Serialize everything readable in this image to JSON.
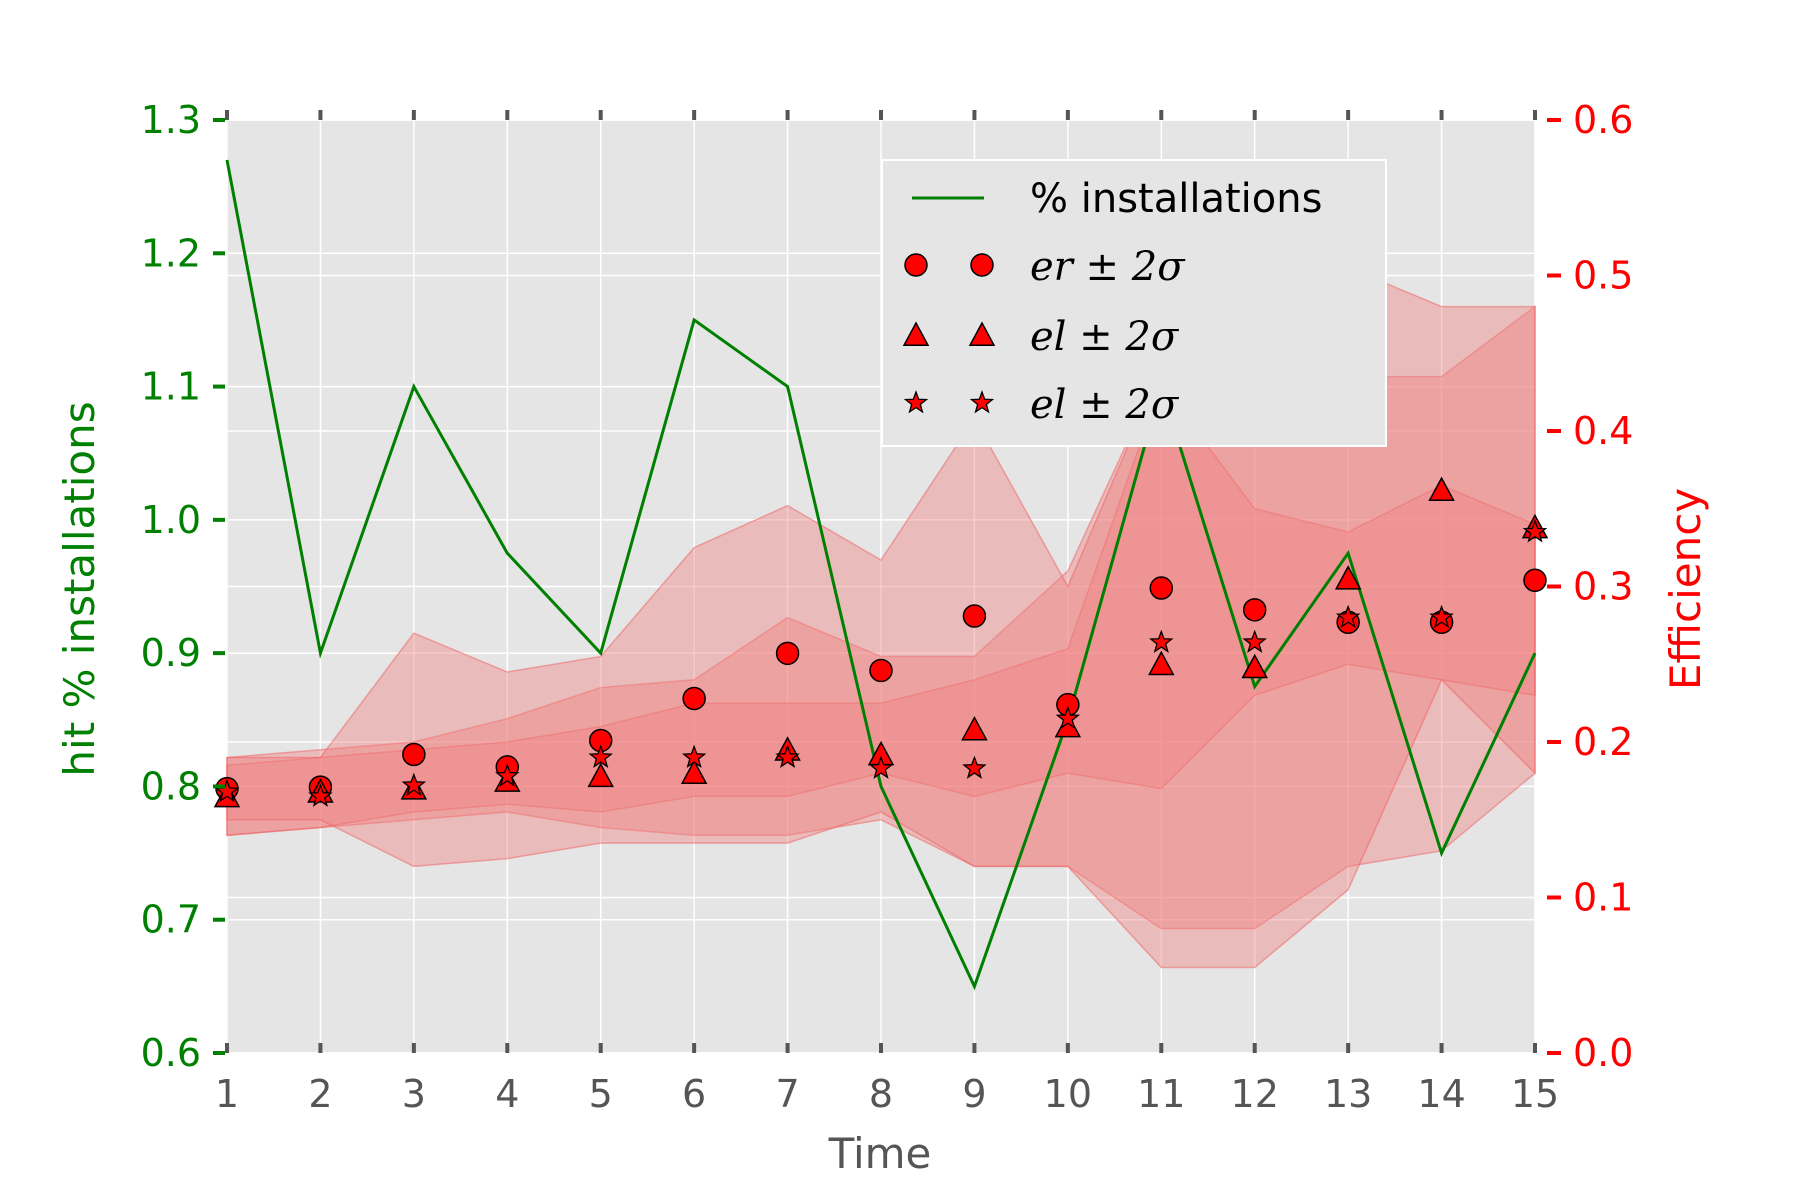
{
  "chart_data": {
    "type": "line",
    "x": [
      1,
      2,
      3,
      4,
      5,
      6,
      7,
      8,
      9,
      10,
      11,
      12,
      13,
      14,
      15
    ],
    "xlabel": "Time",
    "xlim": [
      1,
      15
    ],
    "x_tick_labels": [
      "1",
      "2",
      "3",
      "4",
      "5",
      "6",
      "7",
      "8",
      "9",
      "10",
      "11",
      "12",
      "13",
      "14",
      "15"
    ],
    "y_left": {
      "label": "hit % installations",
      "lim": [
        0.6,
        1.3
      ],
      "tick_labels": [
        "0.6",
        "0.7",
        "0.8",
        "0.9",
        "1.0",
        "1.1",
        "1.2",
        "1.3"
      ],
      "color": "#008000"
    },
    "y_right": {
      "label": "Efficiency",
      "lim": [
        0.0,
        0.6
      ],
      "tick_labels": [
        "0.0",
        "0.1",
        "0.2",
        "0.3",
        "0.4",
        "0.5",
        "0.6"
      ],
      "color": "#ff0000"
    },
    "grid": true,
    "legend_position": "top-right",
    "series": [
      {
        "name": "% installations",
        "axis": "left",
        "kind": "line",
        "color": "#008000",
        "values": [
          1.27,
          0.9,
          1.1,
          0.975,
          0.9,
          1.15,
          1.1,
          0.8,
          0.65,
          0.85,
          1.1,
          0.875,
          0.975,
          0.75,
          0.9
        ]
      },
      {
        "name": "er ± 2σ",
        "axis": "right",
        "kind": "scatter",
        "marker": "circle",
        "color": "#ff0000",
        "values": [
          0.17,
          0.171,
          0.192,
          0.184,
          0.201,
          0.228,
          0.257,
          0.246,
          0.281,
          0.224,
          0.299,
          0.285,
          0.277,
          0.277,
          0.304
        ],
        "band_lower": [
          0.14,
          0.145,
          0.15,
          0.155,
          0.145,
          0.14,
          0.14,
          0.15,
          0.12,
          0.12,
          0.08,
          0.08,
          0.12,
          0.13,
          0.18
        ],
        "band_upper": [
          0.19,
          0.195,
          0.2,
          0.215,
          0.235,
          0.24,
          0.28,
          0.255,
          0.255,
          0.31,
          0.44,
          0.445,
          0.435,
          0.435,
          0.48
        ]
      },
      {
        "name": "el ± 2σ",
        "axis": "right",
        "kind": "scatter",
        "marker": "triangle",
        "color": "#ff0000",
        "values": [
          0.165,
          0.168,
          0.17,
          0.175,
          0.178,
          0.18,
          0.195,
          0.192,
          0.208,
          0.21,
          0.25,
          0.248,
          0.305,
          0.362,
          0.338
        ],
        "band_lower": [
          0.14,
          0.145,
          0.155,
          0.16,
          0.155,
          0.165,
          0.165,
          0.18,
          0.165,
          0.18,
          0.17,
          0.23,
          0.25,
          0.24,
          0.23
        ],
        "band_upper": [
          0.185,
          0.19,
          0.195,
          0.2,
          0.21,
          0.225,
          0.225,
          0.225,
          0.24,
          0.26,
          0.43,
          0.35,
          0.335,
          0.365,
          0.34
        ]
      },
      {
        "name": "el ± 2σ",
        "axis": "right",
        "kind": "scatter",
        "marker": "star",
        "color": "#ff0000",
        "values": [
          0.168,
          0.165,
          0.172,
          0.178,
          0.19,
          0.19,
          0.19,
          0.183,
          0.183,
          0.215,
          0.264,
          0.264,
          0.28,
          0.28,
          0.335
        ],
        "band_lower": [
          0.15,
          0.15,
          0.12,
          0.125,
          0.135,
          0.135,
          0.135,
          0.155,
          0.12,
          0.12,
          0.055,
          0.055,
          0.105,
          0.24,
          0.18
        ],
        "band_upper": [
          0.19,
          0.19,
          0.27,
          0.245,
          0.255,
          0.325,
          0.352,
          0.317,
          0.408,
          0.3,
          0.44,
          0.44,
          0.505,
          0.48,
          0.48
        ]
      }
    ]
  }
}
